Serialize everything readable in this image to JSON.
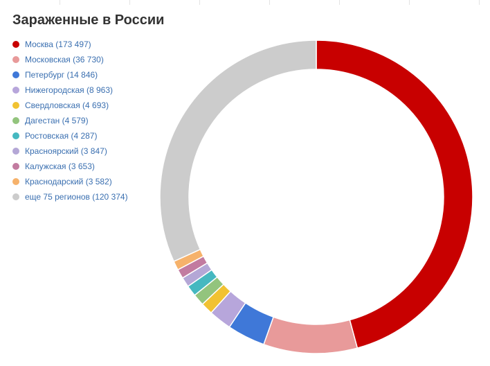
{
  "chart_data": {
    "type": "pie",
    "variant": "donut",
    "title": "Зараженные в России",
    "legend_position": "top-left",
    "start_angle_deg": 0,
    "direction": "clockwise",
    "series": [
      {
        "label": "Москва (173 497)",
        "value": 173497,
        "color": "#c80000"
      },
      {
        "label": "Московская (36 730)",
        "value": 36730,
        "color": "#e89a9a"
      },
      {
        "label": "Петербург (14 846)",
        "value": 14846,
        "color": "#3f78d8"
      },
      {
        "label": "Нижегородская (8 963)",
        "value": 8963,
        "color": "#b7a6db"
      },
      {
        "label": "Свердловская (4 693)",
        "value": 4693,
        "color": "#f1c232"
      },
      {
        "label": "Дагестан (4 579)",
        "value": 4579,
        "color": "#93c47d"
      },
      {
        "label": "Ростовская (4 287)",
        "value": 4287,
        "color": "#45b8c0"
      },
      {
        "label": "Красноярский (3 847)",
        "value": 3847,
        "color": "#b4a7d6"
      },
      {
        "label": "Калужская (3 653)",
        "value": 3653,
        "color": "#c27ba0"
      },
      {
        "label": "Краснодарский (3 582)",
        "value": 3582,
        "color": "#f6b26b"
      },
      {
        "label": "еще 75 регионов (120 374)",
        "value": 120374,
        "color": "#cccccc"
      }
    ]
  }
}
